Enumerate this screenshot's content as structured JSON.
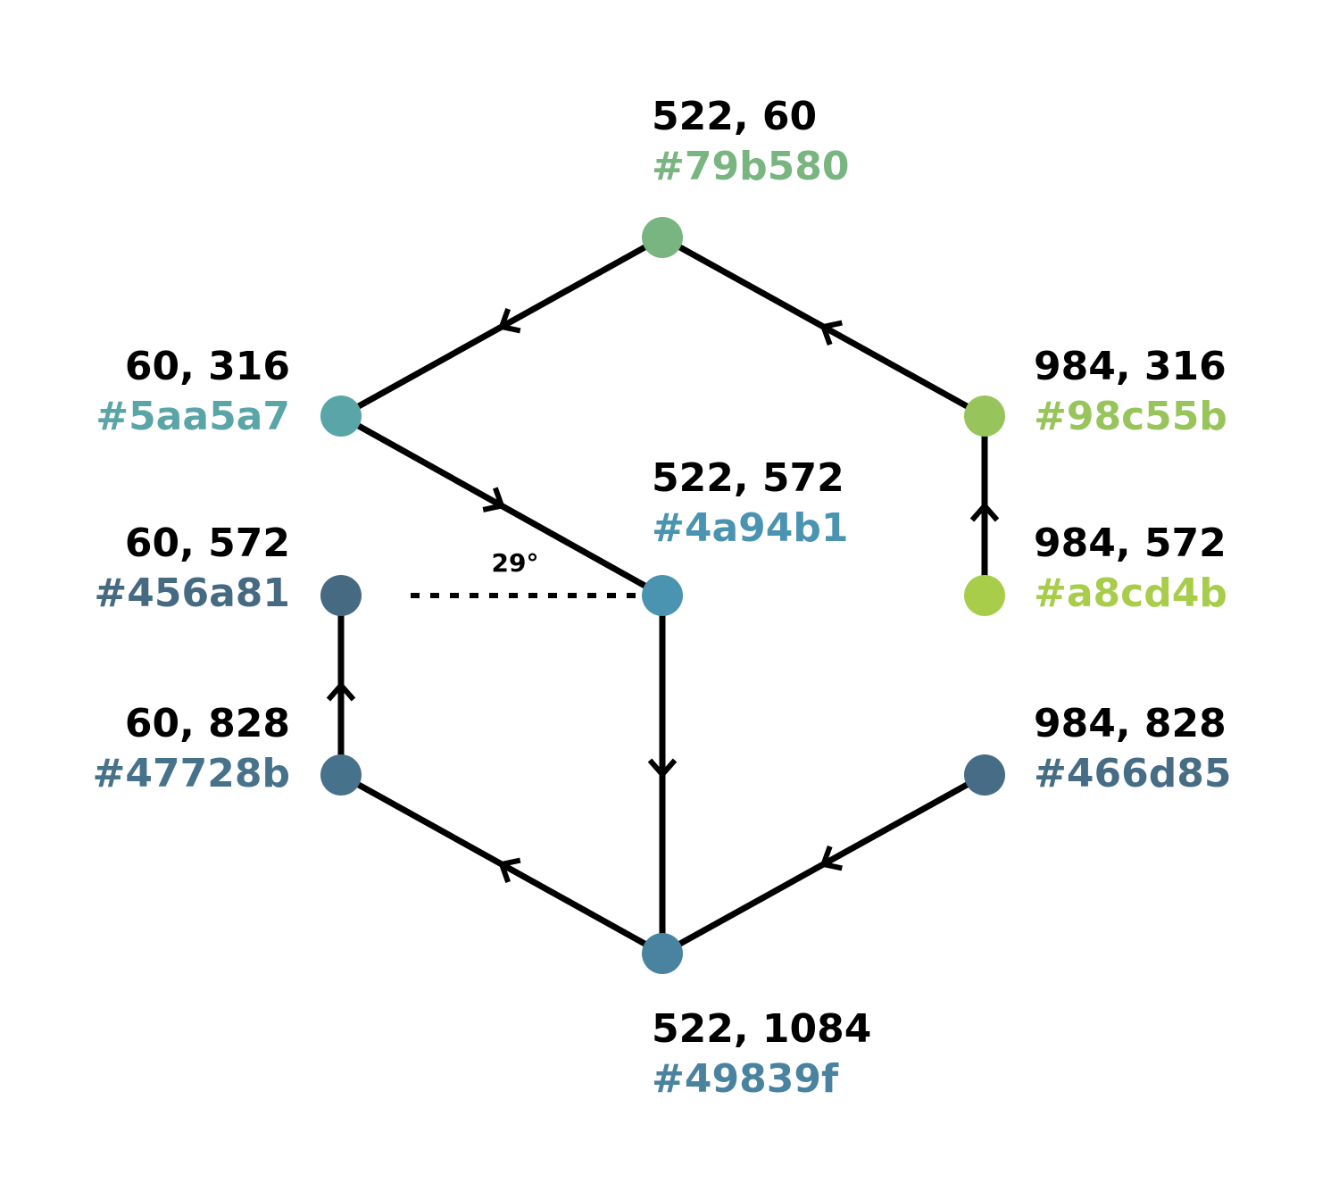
{
  "nodes": [
    {
      "id": "n522-60",
      "coord": "522, 60",
      "hex": "#79b580",
      "color": "#79b580"
    },
    {
      "id": "n60-316",
      "coord": "60, 316",
      "hex": "#5aa5a7",
      "color": "#5aa5a7"
    },
    {
      "id": "n984-316",
      "coord": "984, 316",
      "hex": "#98c55b",
      "color": "#98c55b"
    },
    {
      "id": "n522-572",
      "coord": "522, 572",
      "hex": "#4a94b1",
      "color": "#4a94b1"
    },
    {
      "id": "n60-572",
      "coord": "60, 572",
      "hex": "#456a81",
      "color": "#456a81"
    },
    {
      "id": "n984-572",
      "coord": "984, 572",
      "hex": "#a8cd4b",
      "color": "#a8cd4b"
    },
    {
      "id": "n60-828",
      "coord": "60, 828",
      "hex": "#47728b",
      "color": "#47728b"
    },
    {
      "id": "n984-828",
      "coord": "984, 828",
      "hex": "#466d85",
      "color": "#466d85"
    },
    {
      "id": "n522-1084",
      "coord": "522, 1084",
      "hex": "#49839f",
      "color": "#49839f"
    }
  ],
  "edges": [
    {
      "from": "n522-60",
      "to": "n60-316"
    },
    {
      "from": "n984-316",
      "to": "n522-60"
    },
    {
      "from": "n984-572",
      "to": "n984-316"
    },
    {
      "from": "n60-316",
      "to": "n522-572"
    },
    {
      "from": "n522-572",
      "to": "n522-1084"
    },
    {
      "from": "n522-1084",
      "to": "n60-828"
    },
    {
      "from": "n60-828",
      "to": "n60-572"
    },
    {
      "from": "n984-828",
      "to": "n522-1084"
    }
  ],
  "angle_label": "29°",
  "line_color": "#000000"
}
